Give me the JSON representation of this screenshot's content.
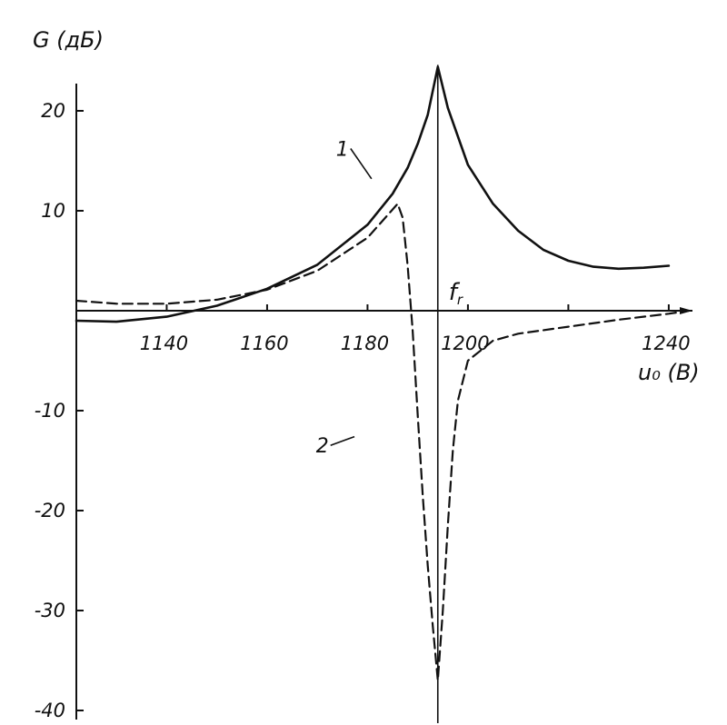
{
  "chart_data": {
    "type": "line",
    "title": "",
    "ylabel": "G (дБ)",
    "xlabel": "u₀ (В)",
    "xlim": [
      1122,
      1244
    ],
    "ylim": [
      -40,
      25
    ],
    "x_ticks": [
      1140,
      1160,
      1180,
      1200,
      1240
    ],
    "x_tick_labels": [
      "1140",
      "1160",
      "1180",
      "1200",
      "1240"
    ],
    "x_unlabeled_ticks": [
      1220
    ],
    "y_ticks": [
      20,
      10,
      -10,
      -20,
      -30,
      -40
    ],
    "y_tick_labels": [
      "20",
      "10",
      "-10",
      "-20",
      "-30",
      "-40"
    ],
    "grid": false,
    "legend": "none",
    "resonance_line": {
      "x": 1194,
      "label": "f",
      "subscript": "r"
    },
    "series": [
      {
        "name": "1",
        "style": "solid",
        "color": "#111111",
        "points": [
          [
            1122,
            -1.0
          ],
          [
            1130,
            -1.1
          ],
          [
            1140,
            -0.6
          ],
          [
            1150,
            0.5
          ],
          [
            1160,
            2.2
          ],
          [
            1170,
            4.6
          ],
          [
            1180,
            8.6
          ],
          [
            1185,
            11.7
          ],
          [
            1188,
            14.3
          ],
          [
            1190,
            16.7
          ],
          [
            1192,
            19.6
          ],
          [
            1194,
            24.4
          ],
          [
            1196,
            20.3
          ],
          [
            1200,
            14.6
          ],
          [
            1205,
            10.7
          ],
          [
            1210,
            8.0
          ],
          [
            1215,
            6.1
          ],
          [
            1220,
            5.0
          ],
          [
            1225,
            4.4
          ],
          [
            1230,
            4.2
          ],
          [
            1235,
            4.3
          ],
          [
            1240,
            4.5
          ]
        ]
      },
      {
        "name": "2",
        "style": "dashed",
        "color": "#111111",
        "points": [
          [
            1122,
            1.0
          ],
          [
            1130,
            0.7
          ],
          [
            1140,
            0.7
          ],
          [
            1150,
            1.1
          ],
          [
            1160,
            2.1
          ],
          [
            1170,
            4.0
          ],
          [
            1180,
            7.3
          ],
          [
            1186,
            10.7
          ],
          [
            1187,
            9.3
          ],
          [
            1188,
            4.5
          ],
          [
            1189,
            -2.0
          ],
          [
            1190,
            -10.5
          ],
          [
            1191,
            -18.5
          ],
          [
            1192,
            -25.5
          ],
          [
            1193,
            -31.5
          ],
          [
            1194,
            -37.0
          ],
          [
            1195,
            -30.0
          ],
          [
            1196,
            -21.5
          ],
          [
            1197,
            -14.0
          ],
          [
            1198,
            -9.0
          ],
          [
            1200,
            -5.0
          ],
          [
            1205,
            -3.0
          ],
          [
            1210,
            -2.3
          ],
          [
            1220,
            -1.6
          ],
          [
            1230,
            -0.9
          ],
          [
            1240,
            -0.3
          ],
          [
            1244,
            0.0
          ]
        ]
      }
    ],
    "curve_labels": [
      {
        "text": "1",
        "x": 1175,
        "y": 15.5,
        "to": [
          1180.8,
          13.2
        ]
      },
      {
        "text": "2",
        "x": 1171,
        "y": -14.2,
        "to": [
          1177.4,
          -12.6
        ]
      }
    ]
  }
}
